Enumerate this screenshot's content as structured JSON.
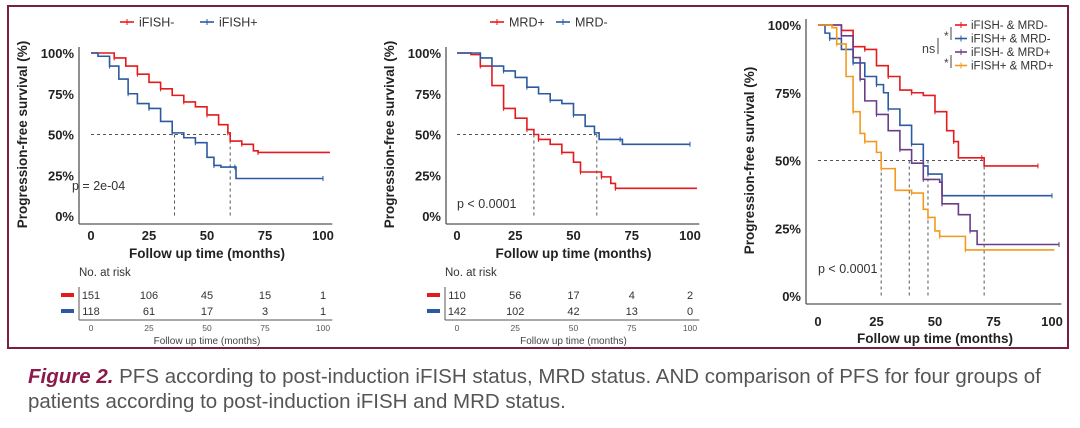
{
  "caption": {
    "label": "Figure 2.",
    "text": " PFS according to post-induction iFISH status, MRD status. AND comparison of PFS for four groups of patients according to post-induction iFISH and MRD status."
  },
  "chart_data": [
    {
      "type": "line",
      "subtype": "kaplan-meier",
      "xlabel": "Follow up time (months)",
      "ylabel": "Progression-free survival (%)",
      "xlim": [
        0,
        100
      ],
      "ylim": [
        0,
        100
      ],
      "xticks": [
        "0",
        "25",
        "50",
        "75",
        "100"
      ],
      "yticks": [
        "0%",
        "25%",
        "50%",
        "75%",
        "100%"
      ],
      "legend_position": "top",
      "annotation": "p = 2e-04",
      "median_lines": [
        36,
        60
      ],
      "series": [
        {
          "name": "iFISH-",
          "color": "#e41a1c",
          "points": [
            [
              0,
              100
            ],
            [
              6,
              100
            ],
            [
              10,
              97
            ],
            [
              15,
              92
            ],
            [
              20,
              87
            ],
            [
              25,
              82
            ],
            [
              30,
              78
            ],
            [
              35,
              74
            ],
            [
              40,
              70
            ],
            [
              45,
              67
            ],
            [
              50,
              62
            ],
            [
              55,
              56
            ],
            [
              59,
              51
            ],
            [
              60,
              46
            ],
            [
              65,
              44
            ],
            [
              70,
              40
            ],
            [
              72,
              39
            ],
            [
              103,
              39
            ]
          ]
        },
        {
          "name": "iFISH+",
          "color": "#2c5aa0",
          "points": [
            [
              0,
              100
            ],
            [
              3,
              98
            ],
            [
              8,
              92
            ],
            [
              12,
              84
            ],
            [
              16,
              75
            ],
            [
              20,
              69
            ],
            [
              25,
              66
            ],
            [
              30,
              58
            ],
            [
              35,
              51
            ],
            [
              40,
              48
            ],
            [
              45,
              45
            ],
            [
              50,
              36
            ],
            [
              53,
              31
            ],
            [
              56,
              30
            ],
            [
              62,
              30
            ],
            [
              62.5,
              23
            ],
            [
              100,
              23
            ]
          ]
        }
      ],
      "risk_table": {
        "title": "No. at risk",
        "xlabel": "Follow up time (months)",
        "rows": [
          {
            "color": "#e41a1c",
            "values": [
              "151",
              "106",
              "45",
              "15",
              "1"
            ]
          },
          {
            "color": "#2c5aa0",
            "values": [
              "118",
              "61",
              "17",
              "3",
              "1"
            ]
          }
        ]
      }
    },
    {
      "type": "line",
      "subtype": "kaplan-meier",
      "xlabel": "Follow up time (months)",
      "ylabel": "Progression-free survival (%)",
      "xlim": [
        0,
        100
      ],
      "ylim": [
        0,
        100
      ],
      "xticks": [
        "0",
        "25",
        "50",
        "75",
        "100"
      ],
      "yticks": [
        "0%",
        "25%",
        "50%",
        "75%",
        "100%"
      ],
      "legend_position": "top",
      "annotation": "p < 0.0001",
      "median_lines": [
        33,
        60
      ],
      "series": [
        {
          "name": "MRD+",
          "color": "#e41a1c",
          "points": [
            [
              0,
              100
            ],
            [
              6,
              99
            ],
            [
              10,
              92
            ],
            [
              15,
              80
            ],
            [
              20,
              66
            ],
            [
              25,
              60
            ],
            [
              30,
              53
            ],
            [
              33,
              50
            ],
            [
              35,
              47
            ],
            [
              40,
              44
            ],
            [
              45,
              39
            ],
            [
              50,
              33
            ],
            [
              53,
              27
            ],
            [
              59,
              27
            ],
            [
              62,
              24
            ],
            [
              66,
              20
            ],
            [
              68,
              17
            ],
            [
              103,
              17
            ]
          ]
        },
        {
          "name": "MRD-",
          "color": "#2c5aa0",
          "points": [
            [
              0,
              100
            ],
            [
              5,
              100
            ],
            [
              10,
              97
            ],
            [
              15,
              92
            ],
            [
              20,
              89
            ],
            [
              25,
              85
            ],
            [
              30,
              79
            ],
            [
              35,
              75
            ],
            [
              40,
              71
            ],
            [
              45,
              69
            ],
            [
              50,
              62
            ],
            [
              55,
              55
            ],
            [
              59,
              51
            ],
            [
              61,
              47
            ],
            [
              70,
              47
            ],
            [
              71,
              44
            ],
            [
              100,
              44
            ]
          ]
        }
      ],
      "risk_table": {
        "title": "No. at risk",
        "xlabel": "Follow up time (months)",
        "rows": [
          {
            "color": "#e41a1c",
            "values": [
              "110",
              "56",
              "17",
              "4",
              "2"
            ]
          },
          {
            "color": "#2c5aa0",
            "values": [
              "142",
              "102",
              "42",
              "13",
              "0"
            ]
          }
        ]
      }
    },
    {
      "type": "line",
      "subtype": "kaplan-meier",
      "xlabel": "Follow up time (months)",
      "ylabel": "Progression-free survival (%)",
      "xlim": [
        0,
        100
      ],
      "ylim": [
        0,
        100
      ],
      "xticks": [
        "0",
        "25",
        "50",
        "75",
        "100"
      ],
      "yticks": [
        "0%",
        "25%",
        "50%",
        "75%",
        "100%"
      ],
      "legend_position": "top-right",
      "annotation": "p < 0.0001",
      "significance_marks": [
        "*",
        "ns",
        "*"
      ],
      "median_lines": [
        27,
        39,
        47,
        71
      ],
      "series": [
        {
          "name": "iFISH- & MRD-",
          "color": "#e41a1c",
          "points": [
            [
              0,
              100
            ],
            [
              7,
              100
            ],
            [
              10,
              98
            ],
            [
              15,
              92
            ],
            [
              20,
              91
            ],
            [
              25,
              85
            ],
            [
              30,
              81
            ],
            [
              35,
              76
            ],
            [
              40,
              75
            ],
            [
              45,
              74
            ],
            [
              50,
              68
            ],
            [
              55,
              61
            ],
            [
              58,
              57
            ],
            [
              60,
              51
            ],
            [
              70,
              51
            ],
            [
              71,
              48
            ],
            [
              94,
              48
            ]
          ]
        },
        {
          "name": "iFISH+ & MRD-",
          "color": "#2c5aa0",
          "points": [
            [
              0,
              100
            ],
            [
              3,
              97
            ],
            [
              5,
              95
            ],
            [
              10,
              91
            ],
            [
              15,
              86
            ],
            [
              20,
              81
            ],
            [
              25,
              78
            ],
            [
              28,
              75
            ],
            [
              30,
              69
            ],
            [
              35,
              63
            ],
            [
              40,
              56
            ],
            [
              45,
              48
            ],
            [
              47,
              45
            ],
            [
              53,
              37
            ],
            [
              100,
              37
            ]
          ]
        },
        {
          "name": "iFISH- & MRD+",
          "color": "#6a3d8a",
          "points": [
            [
              0,
              100
            ],
            [
              8,
              100
            ],
            [
              10,
              96
            ],
            [
              15,
              88
            ],
            [
              18,
              80
            ],
            [
              20,
              72
            ],
            [
              25,
              67
            ],
            [
              30,
              61
            ],
            [
              35,
              54
            ],
            [
              40,
              49
            ],
            [
              45,
              43
            ],
            [
              52,
              42
            ],
            [
              53,
              34
            ],
            [
              60,
              30
            ],
            [
              65,
              24
            ],
            [
              68,
              19
            ],
            [
              103,
              19
            ]
          ]
        },
        {
          "name": "iFISH+ & MRD+",
          "color": "#f29a1f",
          "points": [
            [
              0,
              100
            ],
            [
              6,
              99
            ],
            [
              8,
              93
            ],
            [
              12,
              81
            ],
            [
              15,
              68
            ],
            [
              18,
              60
            ],
            [
              20,
              57
            ],
            [
              25,
              53
            ],
            [
              27,
              47
            ],
            [
              33,
              39
            ],
            [
              40,
              38
            ],
            [
              45,
              32
            ],
            [
              47,
              29
            ],
            [
              50,
              24
            ],
            [
              52,
              22
            ],
            [
              62,
              22
            ],
            [
              63,
              17
            ],
            [
              101,
              17
            ]
          ]
        }
      ]
    }
  ]
}
